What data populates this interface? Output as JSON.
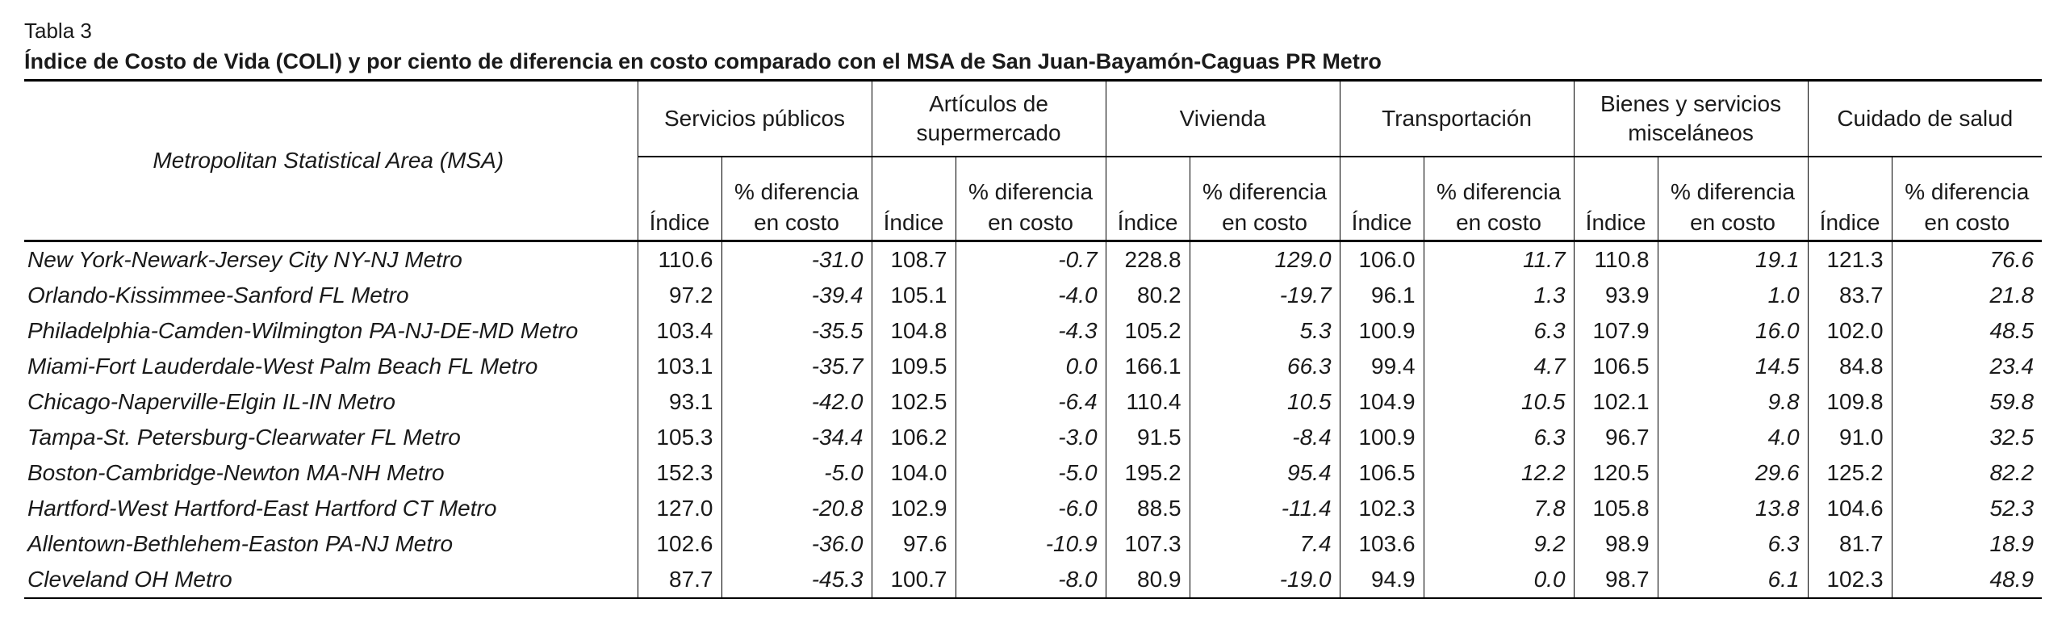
{
  "table_label": "Tabla 3",
  "title": "Índice de Costo de Vida (COLI) y por ciento de diferencia en costo comparado con el MSA de San Juan-Bayamón-Caguas PR Metro",
  "header": {
    "msa": "Metropolitan Statistical Area (MSA)",
    "groups": [
      "Servicios públicos",
      "Artículos de supermercado",
      "Vivienda",
      "Transportación",
      "Bienes y servicios misceláneos",
      "Cuidado de salud"
    ],
    "sub_index": "Índice",
    "sub_pct": "% diferencia en costo"
  },
  "rows": [
    {
      "name": "New York-Newark-Jersey City NY-NJ Metro",
      "v": [
        "110.6",
        "-31.0",
        "108.7",
        "-0.7",
        "228.8",
        "129.0",
        "106.0",
        "11.7",
        "110.8",
        "19.1",
        "121.3",
        "76.6"
      ]
    },
    {
      "name": "Orlando-Kissimmee-Sanford FL Metro",
      "v": [
        "97.2",
        "-39.4",
        "105.1",
        "-4.0",
        "80.2",
        "-19.7",
        "96.1",
        "1.3",
        "93.9",
        "1.0",
        "83.7",
        "21.8"
      ]
    },
    {
      "name": "Philadelphia-Camden-Wilmington PA-NJ-DE-MD Metro",
      "v": [
        "103.4",
        "-35.5",
        "104.8",
        "-4.3",
        "105.2",
        "5.3",
        "100.9",
        "6.3",
        "107.9",
        "16.0",
        "102.0",
        "48.5"
      ]
    },
    {
      "name": "Miami-Fort Lauderdale-West Palm Beach FL Metro",
      "v": [
        "103.1",
        "-35.7",
        "109.5",
        "0.0",
        "166.1",
        "66.3",
        "99.4",
        "4.7",
        "106.5",
        "14.5",
        "84.8",
        "23.4"
      ]
    },
    {
      "name": "Chicago-Naperville-Elgin IL-IN Metro",
      "v": [
        "93.1",
        "-42.0",
        "102.5",
        "-6.4",
        "110.4",
        "10.5",
        "104.9",
        "10.5",
        "102.1",
        "9.8",
        "109.8",
        "59.8"
      ]
    },
    {
      "name": "Tampa-St. Petersburg-Clearwater FL Metro",
      "v": [
        "105.3",
        "-34.4",
        "106.2",
        "-3.0",
        "91.5",
        "-8.4",
        "100.9",
        "6.3",
        "96.7",
        "4.0",
        "91.0",
        "32.5"
      ]
    },
    {
      "name": "Boston-Cambridge-Newton MA-NH Metro",
      "v": [
        "152.3",
        "-5.0",
        "104.0",
        "-5.0",
        "195.2",
        "95.4",
        "106.5",
        "12.2",
        "120.5",
        "29.6",
        "125.2",
        "82.2"
      ]
    },
    {
      "name": "Hartford-West Hartford-East Hartford CT Metro",
      "v": [
        "127.0",
        "-20.8",
        "102.9",
        "-6.0",
        "88.5",
        "-11.4",
        "102.3",
        "7.8",
        "105.8",
        "13.8",
        "104.6",
        "52.3"
      ]
    },
    {
      "name": "Allentown-Bethlehem-Easton PA-NJ Metro",
      "v": [
        "102.6",
        "-36.0",
        "97.6",
        "-10.9",
        "107.3",
        "7.4",
        "103.6",
        "9.2",
        "98.9",
        "6.3",
        "81.7",
        "18.9"
      ]
    },
    {
      "name": "Cleveland OH Metro",
      "v": [
        "87.7",
        "-45.3",
        "100.7",
        "-8.0",
        "80.9",
        "-19.0",
        "94.9",
        "0.0",
        "98.7",
        "6.1",
        "102.3",
        "48.9"
      ]
    }
  ]
}
